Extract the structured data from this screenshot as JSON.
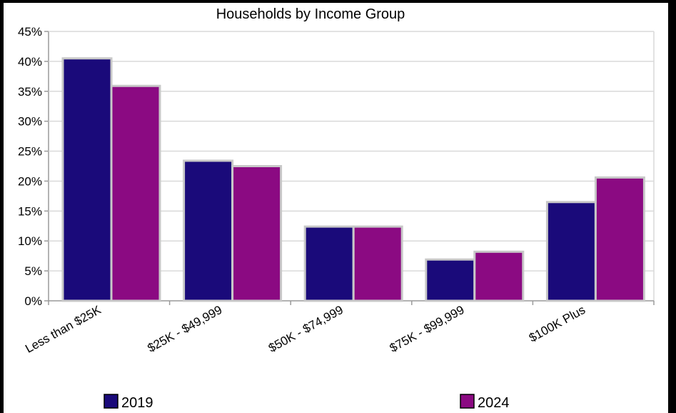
{
  "chart_data": {
    "type": "bar",
    "title": "Households by Income Group",
    "xlabel": "",
    "ylabel": "",
    "categories": [
      "Less than $25K",
      "$25K - $49,999",
      "$50K - $74,999",
      "$75K - $99,999",
      "$100K Plus"
    ],
    "series": [
      {
        "name": "2019",
        "values": [
          40.5,
          23.4,
          12.4,
          6.9,
          16.5
        ],
        "color": "#1a0a7a"
      },
      {
        "name": "2024",
        "values": [
          35.9,
          22.5,
          12.4,
          8.2,
          20.6
        ],
        "color": "#8b0a82"
      }
    ],
    "ylim": [
      0,
      45
    ],
    "yticks": [
      0,
      5,
      10,
      15,
      20,
      25,
      30,
      35,
      40,
      45
    ],
    "ytick_labels": [
      "0%",
      "5%",
      "10%",
      "15%",
      "20%",
      "25%",
      "30%",
      "35%",
      "40%",
      "45%"
    ],
    "grid": true,
    "legend_position": "bottom"
  }
}
